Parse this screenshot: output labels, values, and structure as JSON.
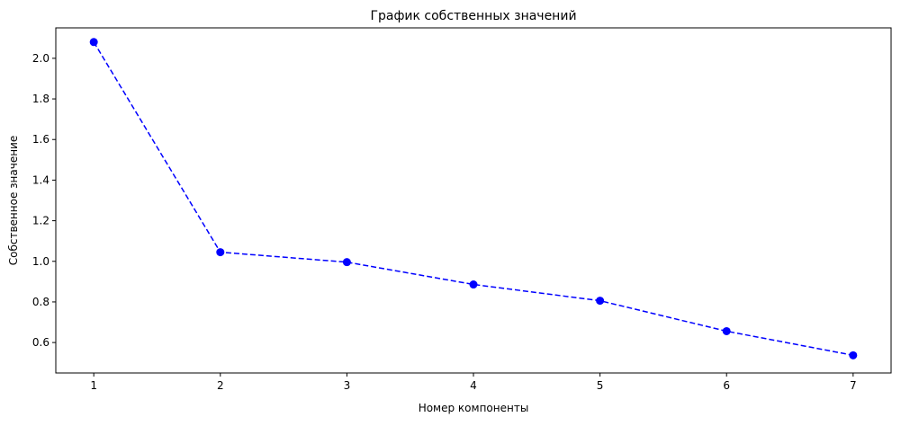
{
  "chart_data": {
    "type": "line",
    "title": "График собственных значений",
    "xlabel": "Номер компоненты",
    "ylabel": "Собственное значение",
    "x": [
      1,
      2,
      3,
      4,
      5,
      6,
      7
    ],
    "series": [
      {
        "values": [
          2.08,
          1.045,
          0.996,
          0.886,
          0.806,
          0.656,
          0.537
        ],
        "color": "#0000ff",
        "line_style": "dashed",
        "marker": "circle"
      }
    ],
    "xlim": [
      0.7,
      7.3
    ],
    "ylim": [
      0.45,
      2.15
    ],
    "x_ticks": [
      1,
      2,
      3,
      4,
      5,
      6,
      7
    ],
    "y_ticks": [
      0.6,
      0.8,
      1.0,
      1.2,
      1.4,
      1.6,
      1.8,
      2.0
    ],
    "x_tick_labels": [
      "1",
      "2",
      "3",
      "4",
      "5",
      "6",
      "7"
    ],
    "y_tick_labels": [
      "0.6",
      "0.8",
      "1.0",
      "1.2",
      "1.4",
      "1.6",
      "1.8",
      "2.0"
    ],
    "grid": false,
    "legend": "none"
  }
}
